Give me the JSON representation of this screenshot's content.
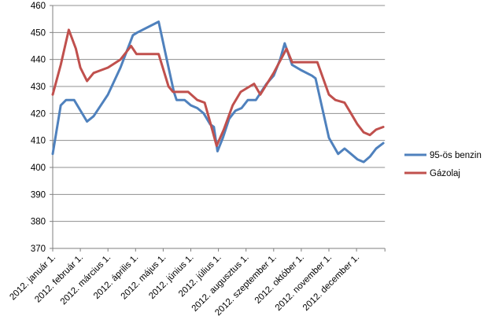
{
  "chart_data": {
    "type": "line",
    "title": "",
    "grid": true,
    "legend_position": "right",
    "background": "#ffffff",
    "gridline_color": "#8f8f8f",
    "axis_color": "#7f7f7f",
    "y_axis": {
      "min": 370,
      "max": 460,
      "step": 10,
      "ticks": [
        460,
        450,
        440,
        430,
        420,
        410,
        400,
        390,
        380,
        370
      ]
    },
    "x_axis": {
      "tick_labels": [
        "2012. január 1.",
        "2012. február 1.",
        "2012. március 1.",
        "2012. április 1.",
        "2012. május 1.",
        "2012. június 1.",
        "2012. július 1.",
        "2012. augusztus 1.",
        "2012. szeptember 1.",
        "2012. október 1.",
        "2012. november 1.",
        "2012. december 1."
      ]
    },
    "series": [
      {
        "name": "95-ös benzin",
        "color": "#4F81BD",
        "points": [
          [
            1,
            1,
            405
          ],
          [
            1,
            10,
            423
          ],
          [
            1,
            16,
            425
          ],
          [
            1,
            25,
            425
          ],
          [
            2,
            8,
            417
          ],
          [
            2,
            15,
            419
          ],
          [
            3,
            1,
            427
          ],
          [
            3,
            15,
            437
          ],
          [
            3,
            29,
            449
          ],
          [
            4,
            3,
            450
          ],
          [
            4,
            26,
            454
          ],
          [
            5,
            7,
            437
          ],
          [
            5,
            13,
            428
          ],
          [
            5,
            16,
            425
          ],
          [
            5,
            25,
            425
          ],
          [
            6,
            1,
            423
          ],
          [
            6,
            8,
            422
          ],
          [
            6,
            15,
            420
          ],
          [
            6,
            22,
            416
          ],
          [
            6,
            26,
            415
          ],
          [
            6,
            30,
            406
          ],
          [
            7,
            6,
            411
          ],
          [
            7,
            13,
            418
          ],
          [
            7,
            20,
            421
          ],
          [
            7,
            27,
            422
          ],
          [
            8,
            3,
            425
          ],
          [
            8,
            12,
            425
          ],
          [
            8,
            24,
            431
          ],
          [
            9,
            1,
            434
          ],
          [
            9,
            8,
            440
          ],
          [
            9,
            13,
            446
          ],
          [
            9,
            21,
            438
          ],
          [
            10,
            1,
            436
          ],
          [
            10,
            13,
            434
          ],
          [
            10,
            17,
            433
          ],
          [
            11,
            1,
            411
          ],
          [
            11,
            11,
            405
          ],
          [
            11,
            18,
            407
          ],
          [
            11,
            25,
            405
          ],
          [
            12,
            2,
            403
          ],
          [
            12,
            9,
            402
          ],
          [
            12,
            16,
            404
          ],
          [
            12,
            23,
            407
          ],
          [
            12,
            31,
            409
          ]
        ]
      },
      {
        "name": "Gázolaj",
        "color": "#C0504D",
        "points": [
          [
            1,
            1,
            427
          ],
          [
            1,
            10,
            438
          ],
          [
            1,
            19,
            451
          ],
          [
            1,
            27,
            444
          ],
          [
            2,
            1,
            437
          ],
          [
            2,
            8,
            432
          ],
          [
            2,
            15,
            435
          ],
          [
            3,
            1,
            437
          ],
          [
            3,
            15,
            440
          ],
          [
            3,
            27,
            445
          ],
          [
            4,
            2,
            442
          ],
          [
            4,
            26,
            442
          ],
          [
            5,
            7,
            430
          ],
          [
            5,
            12,
            428
          ],
          [
            5,
            29,
            428
          ],
          [
            6,
            8,
            425
          ],
          [
            6,
            16,
            424
          ],
          [
            6,
            21,
            418
          ],
          [
            6,
            29,
            408
          ],
          [
            7,
            7,
            414
          ],
          [
            7,
            17,
            423
          ],
          [
            7,
            26,
            428
          ],
          [
            8,
            10,
            431
          ],
          [
            8,
            17,
            427
          ],
          [
            9,
            1,
            435
          ],
          [
            9,
            15,
            444
          ],
          [
            9,
            21,
            439
          ],
          [
            10,
            19,
            439
          ],
          [
            11,
            1,
            427
          ],
          [
            11,
            8,
            425
          ],
          [
            11,
            18,
            424
          ],
          [
            11,
            25,
            420
          ],
          [
            12,
            2,
            416
          ],
          [
            12,
            9,
            413
          ],
          [
            12,
            16,
            412
          ],
          [
            12,
            23,
            414
          ],
          [
            12,
            31,
            415
          ]
        ]
      }
    ]
  }
}
